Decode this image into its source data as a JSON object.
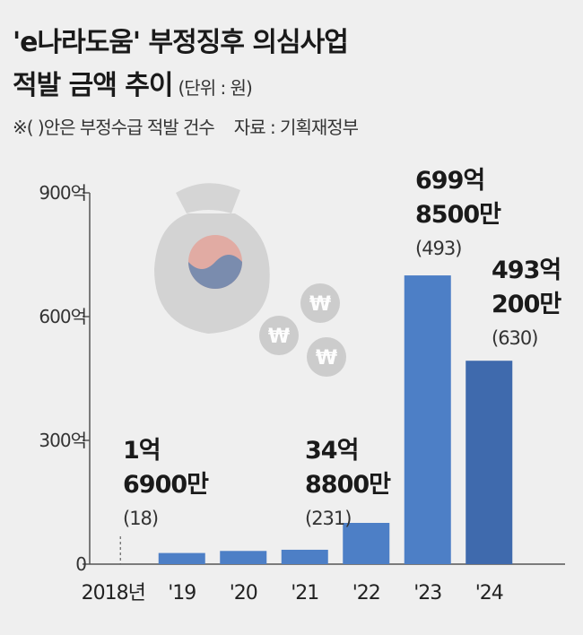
{
  "header": {
    "title_line1": "'e나라도움' 부정징후 의심사업",
    "title_line2": "적발 금액 추이",
    "unit": "(단위 : 원)",
    "note": "※( )안은 부정수급 적발 건수",
    "source": "자료 : 기획재정부"
  },
  "chart_data": {
    "type": "bar",
    "categories": [
      "2018년",
      "'19",
      "'20",
      "'21",
      "'22",
      "'23",
      "'24"
    ],
    "values": [
      1.69,
      27,
      32,
      34.88,
      100,
      699.85,
      493.02
    ],
    "yticks": [
      "0",
      "300억",
      "600억",
      "900억"
    ],
    "ylim": [
      0,
      900
    ],
    "bar_color": "#4d7fc6",
    "last_bar_color": "#3f6aad",
    "annotations": [
      {
        "category": "2018년",
        "amount_line1": "1억",
        "amount_line2": "6900만",
        "count": "(18)"
      },
      {
        "category": "'21",
        "amount_line1": "34억",
        "amount_line2": "8800만",
        "count": "(231)"
      },
      {
        "category": "'23",
        "amount_line1": "699억",
        "amount_line2": "8500만",
        "count": "(493)"
      },
      {
        "category": "'24",
        "amount_line1": "493억",
        "amount_line2": "200만",
        "count": "(630)"
      }
    ]
  }
}
